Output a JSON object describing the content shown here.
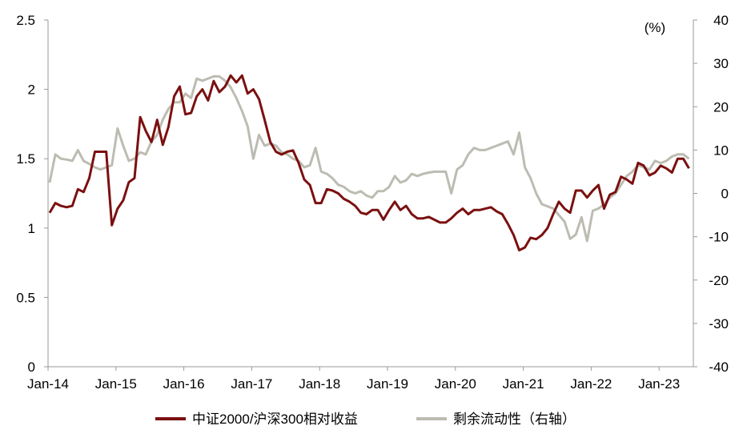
{
  "chart_data": {
    "type": "line",
    "title": "",
    "x_ticks": [
      "Jan-14",
      "Jan-15",
      "Jan-16",
      "Jan-17",
      "Jan-18",
      "Jan-19",
      "Jan-20",
      "Jan-21",
      "Jan-22",
      "Jan-23"
    ],
    "left_axis": {
      "ylim": [
        0,
        2.5
      ],
      "ticks": [
        "0",
        "0.5",
        "1",
        "1.5",
        "2",
        "2.5"
      ]
    },
    "right_axis": {
      "unit_label": "(%)",
      "ylim": [
        -40,
        40
      ],
      "ticks": [
        "-40",
        "-30",
        "-20",
        "-10",
        "0",
        "10",
        "20",
        "30",
        "40"
      ]
    },
    "series": [
      {
        "name": "中证2000/沪深300相对收益",
        "axis": "left",
        "color": "#7B1010",
        "points": [
          [
            "2014-01",
            1.11
          ],
          [
            "2014-02",
            1.18
          ],
          [
            "2014-03",
            1.16
          ],
          [
            "2014-04",
            1.15
          ],
          [
            "2014-05",
            1.16
          ],
          [
            "2014-06",
            1.28
          ],
          [
            "2014-07",
            1.26
          ],
          [
            "2014-08",
            1.36
          ],
          [
            "2014-09",
            1.55
          ],
          [
            "2014-10",
            1.55
          ],
          [
            "2014-11",
            1.55
          ],
          [
            "2014-12",
            1.02
          ],
          [
            "2015-01",
            1.14
          ],
          [
            "2015-02",
            1.2
          ],
          [
            "2015-03",
            1.33
          ],
          [
            "2015-04",
            1.36
          ],
          [
            "2015-05",
            1.8
          ],
          [
            "2015-06",
            1.7
          ],
          [
            "2015-07",
            1.62
          ],
          [
            "2015-08",
            1.78
          ],
          [
            "2015-09",
            1.6
          ],
          [
            "2015-10",
            1.73
          ],
          [
            "2015-11",
            1.95
          ],
          [
            "2015-12",
            2.02
          ],
          [
            "2016-01",
            1.82
          ],
          [
            "2016-02",
            1.83
          ],
          [
            "2016-03",
            1.95
          ],
          [
            "2016-04",
            2.0
          ],
          [
            "2016-05",
            1.92
          ],
          [
            "2016-06",
            2.06
          ],
          [
            "2016-07",
            1.98
          ],
          [
            "2016-08",
            2.02
          ],
          [
            "2016-09",
            2.1
          ],
          [
            "2016-10",
            2.05
          ],
          [
            "2016-11",
            2.1
          ],
          [
            "2016-12",
            1.97
          ],
          [
            "2017-01",
            2.0
          ],
          [
            "2017-02",
            1.93
          ],
          [
            "2017-03",
            1.78
          ],
          [
            "2017-04",
            1.62
          ],
          [
            "2017-05",
            1.55
          ],
          [
            "2017-06",
            1.53
          ],
          [
            "2017-07",
            1.55
          ],
          [
            "2017-08",
            1.56
          ],
          [
            "2017-09",
            1.47
          ],
          [
            "2017-10",
            1.35
          ],
          [
            "2017-11",
            1.31
          ],
          [
            "2017-12",
            1.18
          ],
          [
            "2018-01",
            1.18
          ],
          [
            "2018-02",
            1.28
          ],
          [
            "2018-03",
            1.27
          ],
          [
            "2018-04",
            1.25
          ],
          [
            "2018-05",
            1.21
          ],
          [
            "2018-06",
            1.19
          ],
          [
            "2018-07",
            1.16
          ],
          [
            "2018-08",
            1.11
          ],
          [
            "2018-09",
            1.1
          ],
          [
            "2018-10",
            1.13
          ],
          [
            "2018-11",
            1.13
          ],
          [
            "2018-12",
            1.06
          ],
          [
            "2019-01",
            1.13
          ],
          [
            "2019-02",
            1.19
          ],
          [
            "2019-03",
            1.13
          ],
          [
            "2019-04",
            1.16
          ],
          [
            "2019-05",
            1.1
          ],
          [
            "2019-06",
            1.07
          ],
          [
            "2019-07",
            1.07
          ],
          [
            "2019-08",
            1.08
          ],
          [
            "2019-09",
            1.06
          ],
          [
            "2019-10",
            1.04
          ],
          [
            "2019-11",
            1.04
          ],
          [
            "2019-12",
            1.07
          ],
          [
            "2020-01",
            1.11
          ],
          [
            "2020-02",
            1.14
          ],
          [
            "2020-03",
            1.1
          ],
          [
            "2020-04",
            1.13
          ],
          [
            "2020-05",
            1.13
          ],
          [
            "2020-06",
            1.14
          ],
          [
            "2020-07",
            1.15
          ],
          [
            "2020-08",
            1.12
          ],
          [
            "2020-09",
            1.1
          ],
          [
            "2020-10",
            1.03
          ],
          [
            "2020-11",
            0.95
          ],
          [
            "2020-12",
            0.84
          ],
          [
            "2021-01",
            0.86
          ],
          [
            "2021-02",
            0.93
          ],
          [
            "2021-03",
            0.92
          ],
          [
            "2021-04",
            0.95
          ],
          [
            "2021-05",
            1.0
          ],
          [
            "2021-06",
            1.1
          ],
          [
            "2021-07",
            1.19
          ],
          [
            "2021-08",
            1.14
          ],
          [
            "2021-09",
            1.11
          ],
          [
            "2021-10",
            1.27
          ],
          [
            "2021-11",
            1.27
          ],
          [
            "2021-12",
            1.22
          ],
          [
            "2022-01",
            1.27
          ],
          [
            "2022-02",
            1.31
          ],
          [
            "2022-03",
            1.14
          ],
          [
            "2022-04",
            1.24
          ],
          [
            "2022-05",
            1.26
          ],
          [
            "2022-06",
            1.37
          ],
          [
            "2022-07",
            1.35
          ],
          [
            "2022-08",
            1.32
          ],
          [
            "2022-09",
            1.47
          ],
          [
            "2022-10",
            1.45
          ],
          [
            "2022-11",
            1.38
          ],
          [
            "2022-12",
            1.4
          ],
          [
            "2023-01",
            1.45
          ],
          [
            "2023-02",
            1.43
          ],
          [
            "2023-03",
            1.4
          ],
          [
            "2023-04",
            1.5
          ],
          [
            "2023-05",
            1.5
          ],
          [
            "2023-06",
            1.43
          ]
        ]
      },
      {
        "name": "剩余流动性（右轴）",
        "axis": "right",
        "color": "#BDBCB2",
        "points": [
          [
            "2014-01",
            2.5
          ],
          [
            "2014-02",
            9.0
          ],
          [
            "2014-03",
            8.0
          ],
          [
            "2014-04",
            7.8
          ],
          [
            "2014-05",
            7.5
          ],
          [
            "2014-06",
            10.0
          ],
          [
            "2014-07",
            7.5
          ],
          [
            "2014-08",
            6.8
          ],
          [
            "2014-09",
            6.0
          ],
          [
            "2014-10",
            5.5
          ],
          [
            "2014-11",
            6.0
          ],
          [
            "2014-12",
            6.5
          ],
          [
            "2015-01",
            15.0
          ],
          [
            "2015-02",
            11.0
          ],
          [
            "2015-03",
            7.5
          ],
          [
            "2015-04",
            8.0
          ],
          [
            "2015-05",
            9.5
          ],
          [
            "2015-06",
            9.0
          ],
          [
            "2015-07",
            12.0
          ],
          [
            "2015-08",
            13.5
          ],
          [
            "2015-09",
            17.0
          ],
          [
            "2015-10",
            19.5
          ],
          [
            "2015-11",
            21.0
          ],
          [
            "2015-12",
            21.0
          ],
          [
            "2016-01",
            23.0
          ],
          [
            "2016-02",
            22.0
          ],
          [
            "2016-03",
            26.5
          ],
          [
            "2016-04",
            26.0
          ],
          [
            "2016-05",
            26.5
          ],
          [
            "2016-06",
            27.0
          ],
          [
            "2016-07",
            27.0
          ],
          [
            "2016-08",
            26.0
          ],
          [
            "2016-09",
            24.5
          ],
          [
            "2016-10",
            22.0
          ],
          [
            "2016-11",
            19.0
          ],
          [
            "2016-12",
            15.5
          ],
          [
            "2017-01",
            8.0
          ],
          [
            "2017-02",
            13.5
          ],
          [
            "2017-03",
            11.0
          ],
          [
            "2017-04",
            11.5
          ],
          [
            "2017-05",
            11.0
          ],
          [
            "2017-06",
            9.5
          ],
          [
            "2017-07",
            9.0
          ],
          [
            "2017-08",
            8.0
          ],
          [
            "2017-09",
            7.5
          ],
          [
            "2017-10",
            6.0
          ],
          [
            "2017-11",
            6.5
          ],
          [
            "2017-12",
            10.5
          ],
          [
            "2018-01",
            5.0
          ],
          [
            "2018-02",
            4.5
          ],
          [
            "2018-03",
            3.5
          ],
          [
            "2018-04",
            2.0
          ],
          [
            "2018-05",
            1.5
          ],
          [
            "2018-06",
            0.5
          ],
          [
            "2018-07",
            0.0
          ],
          [
            "2018-08",
            0.5
          ],
          [
            "2018-09",
            -0.5
          ],
          [
            "2018-10",
            -1.0
          ],
          [
            "2018-11",
            0.5
          ],
          [
            "2018-12",
            0.5
          ],
          [
            "2019-01",
            1.5
          ],
          [
            "2019-02",
            4.0
          ],
          [
            "2019-03",
            2.5
          ],
          [
            "2019-04",
            3.0
          ],
          [
            "2019-05",
            4.5
          ],
          [
            "2019-06",
            4.0
          ],
          [
            "2019-07",
            4.5
          ],
          [
            "2019-08",
            4.8
          ],
          [
            "2019-09",
            5.0
          ],
          [
            "2019-10",
            5.0
          ],
          [
            "2019-11",
            5.0
          ],
          [
            "2019-12",
            0.0
          ],
          [
            "2020-01",
            5.5
          ],
          [
            "2020-02",
            6.5
          ],
          [
            "2020-03",
            9.0
          ],
          [
            "2020-04",
            10.5
          ],
          [
            "2020-05",
            10.0
          ],
          [
            "2020-06",
            10.0
          ],
          [
            "2020-07",
            10.5
          ],
          [
            "2020-08",
            11.0
          ],
          [
            "2020-09",
            11.5
          ],
          [
            "2020-10",
            12.0
          ],
          [
            "2020-11",
            9.0
          ],
          [
            "2020-12",
            14.0
          ],
          [
            "2021-01",
            6.0
          ],
          [
            "2021-02",
            3.5
          ],
          [
            "2021-03",
            0.0
          ],
          [
            "2021-04",
            -2.5
          ],
          [
            "2021-05",
            -3.0
          ],
          [
            "2021-06",
            -3.5
          ],
          [
            "2021-07",
            -5.0
          ],
          [
            "2021-08",
            -6.5
          ],
          [
            "2021-09",
            -10.5
          ],
          [
            "2021-10",
            -9.5
          ],
          [
            "2021-11",
            -5.5
          ],
          [
            "2021-12",
            -11.0
          ],
          [
            "2022-01",
            -4.0
          ],
          [
            "2022-02",
            -3.5
          ],
          [
            "2022-03",
            -2.5
          ],
          [
            "2022-04",
            -1.0
          ],
          [
            "2022-05",
            0.0
          ],
          [
            "2022-06",
            2.0
          ],
          [
            "2022-07",
            4.0
          ],
          [
            "2022-08",
            5.0
          ],
          [
            "2022-09",
            6.5
          ],
          [
            "2022-10",
            6.0
          ],
          [
            "2022-11",
            5.5
          ],
          [
            "2022-12",
            7.5
          ],
          [
            "2023-01",
            7.0
          ],
          [
            "2023-02",
            7.5
          ],
          [
            "2023-03",
            8.5
          ],
          [
            "2023-04",
            9.0
          ],
          [
            "2023-05",
            9.0
          ],
          [
            "2023-06",
            8.0
          ]
        ]
      }
    ],
    "legend_position": "bottom"
  }
}
